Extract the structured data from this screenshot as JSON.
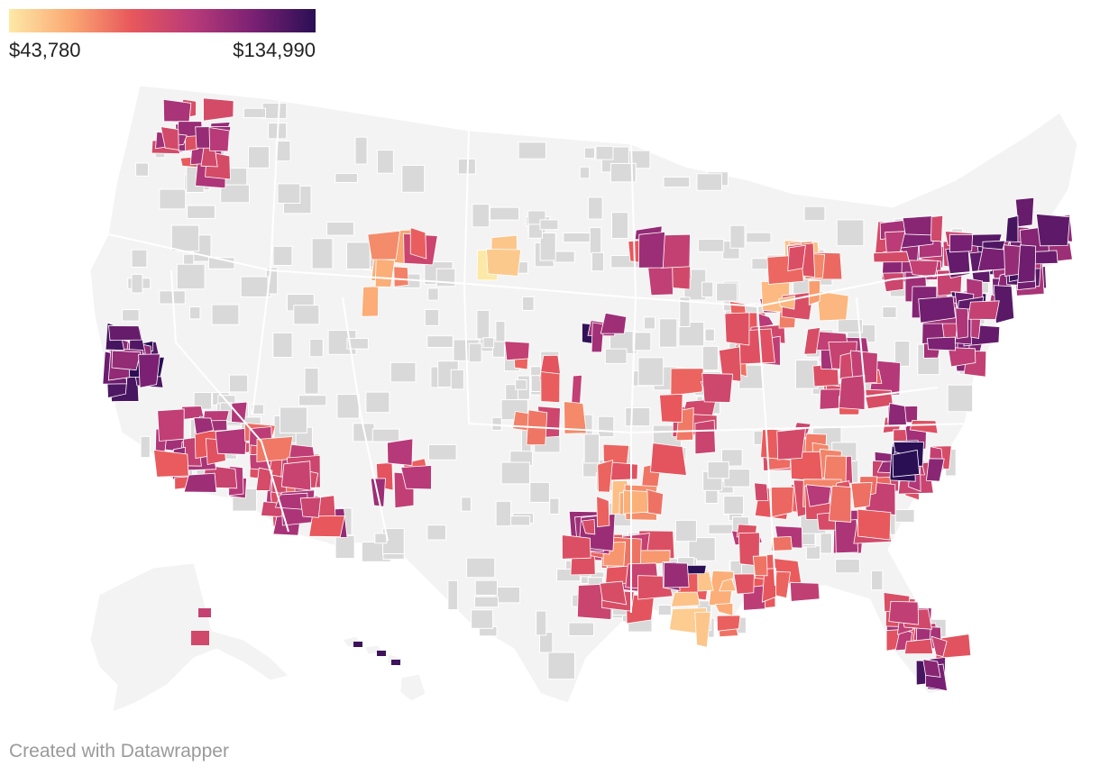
{
  "legend": {
    "min_label": "$43,780",
    "max_label": "$134,990",
    "min_value": 43780,
    "max_value": 134990,
    "color_stops": [
      "#fde9a7",
      "#fba873",
      "#e8575c",
      "#b83a79",
      "#7a2073",
      "#2a0f55"
    ]
  },
  "footer": {
    "credit": "Created with Datawrapper"
  },
  "map": {
    "type": "choropleth",
    "region": "United States metropolitan and nonmetropolitan areas",
    "no_data_color": "#d9d9d9",
    "land_color": "#f3f3f3",
    "border_color": "#ffffff"
  }
}
